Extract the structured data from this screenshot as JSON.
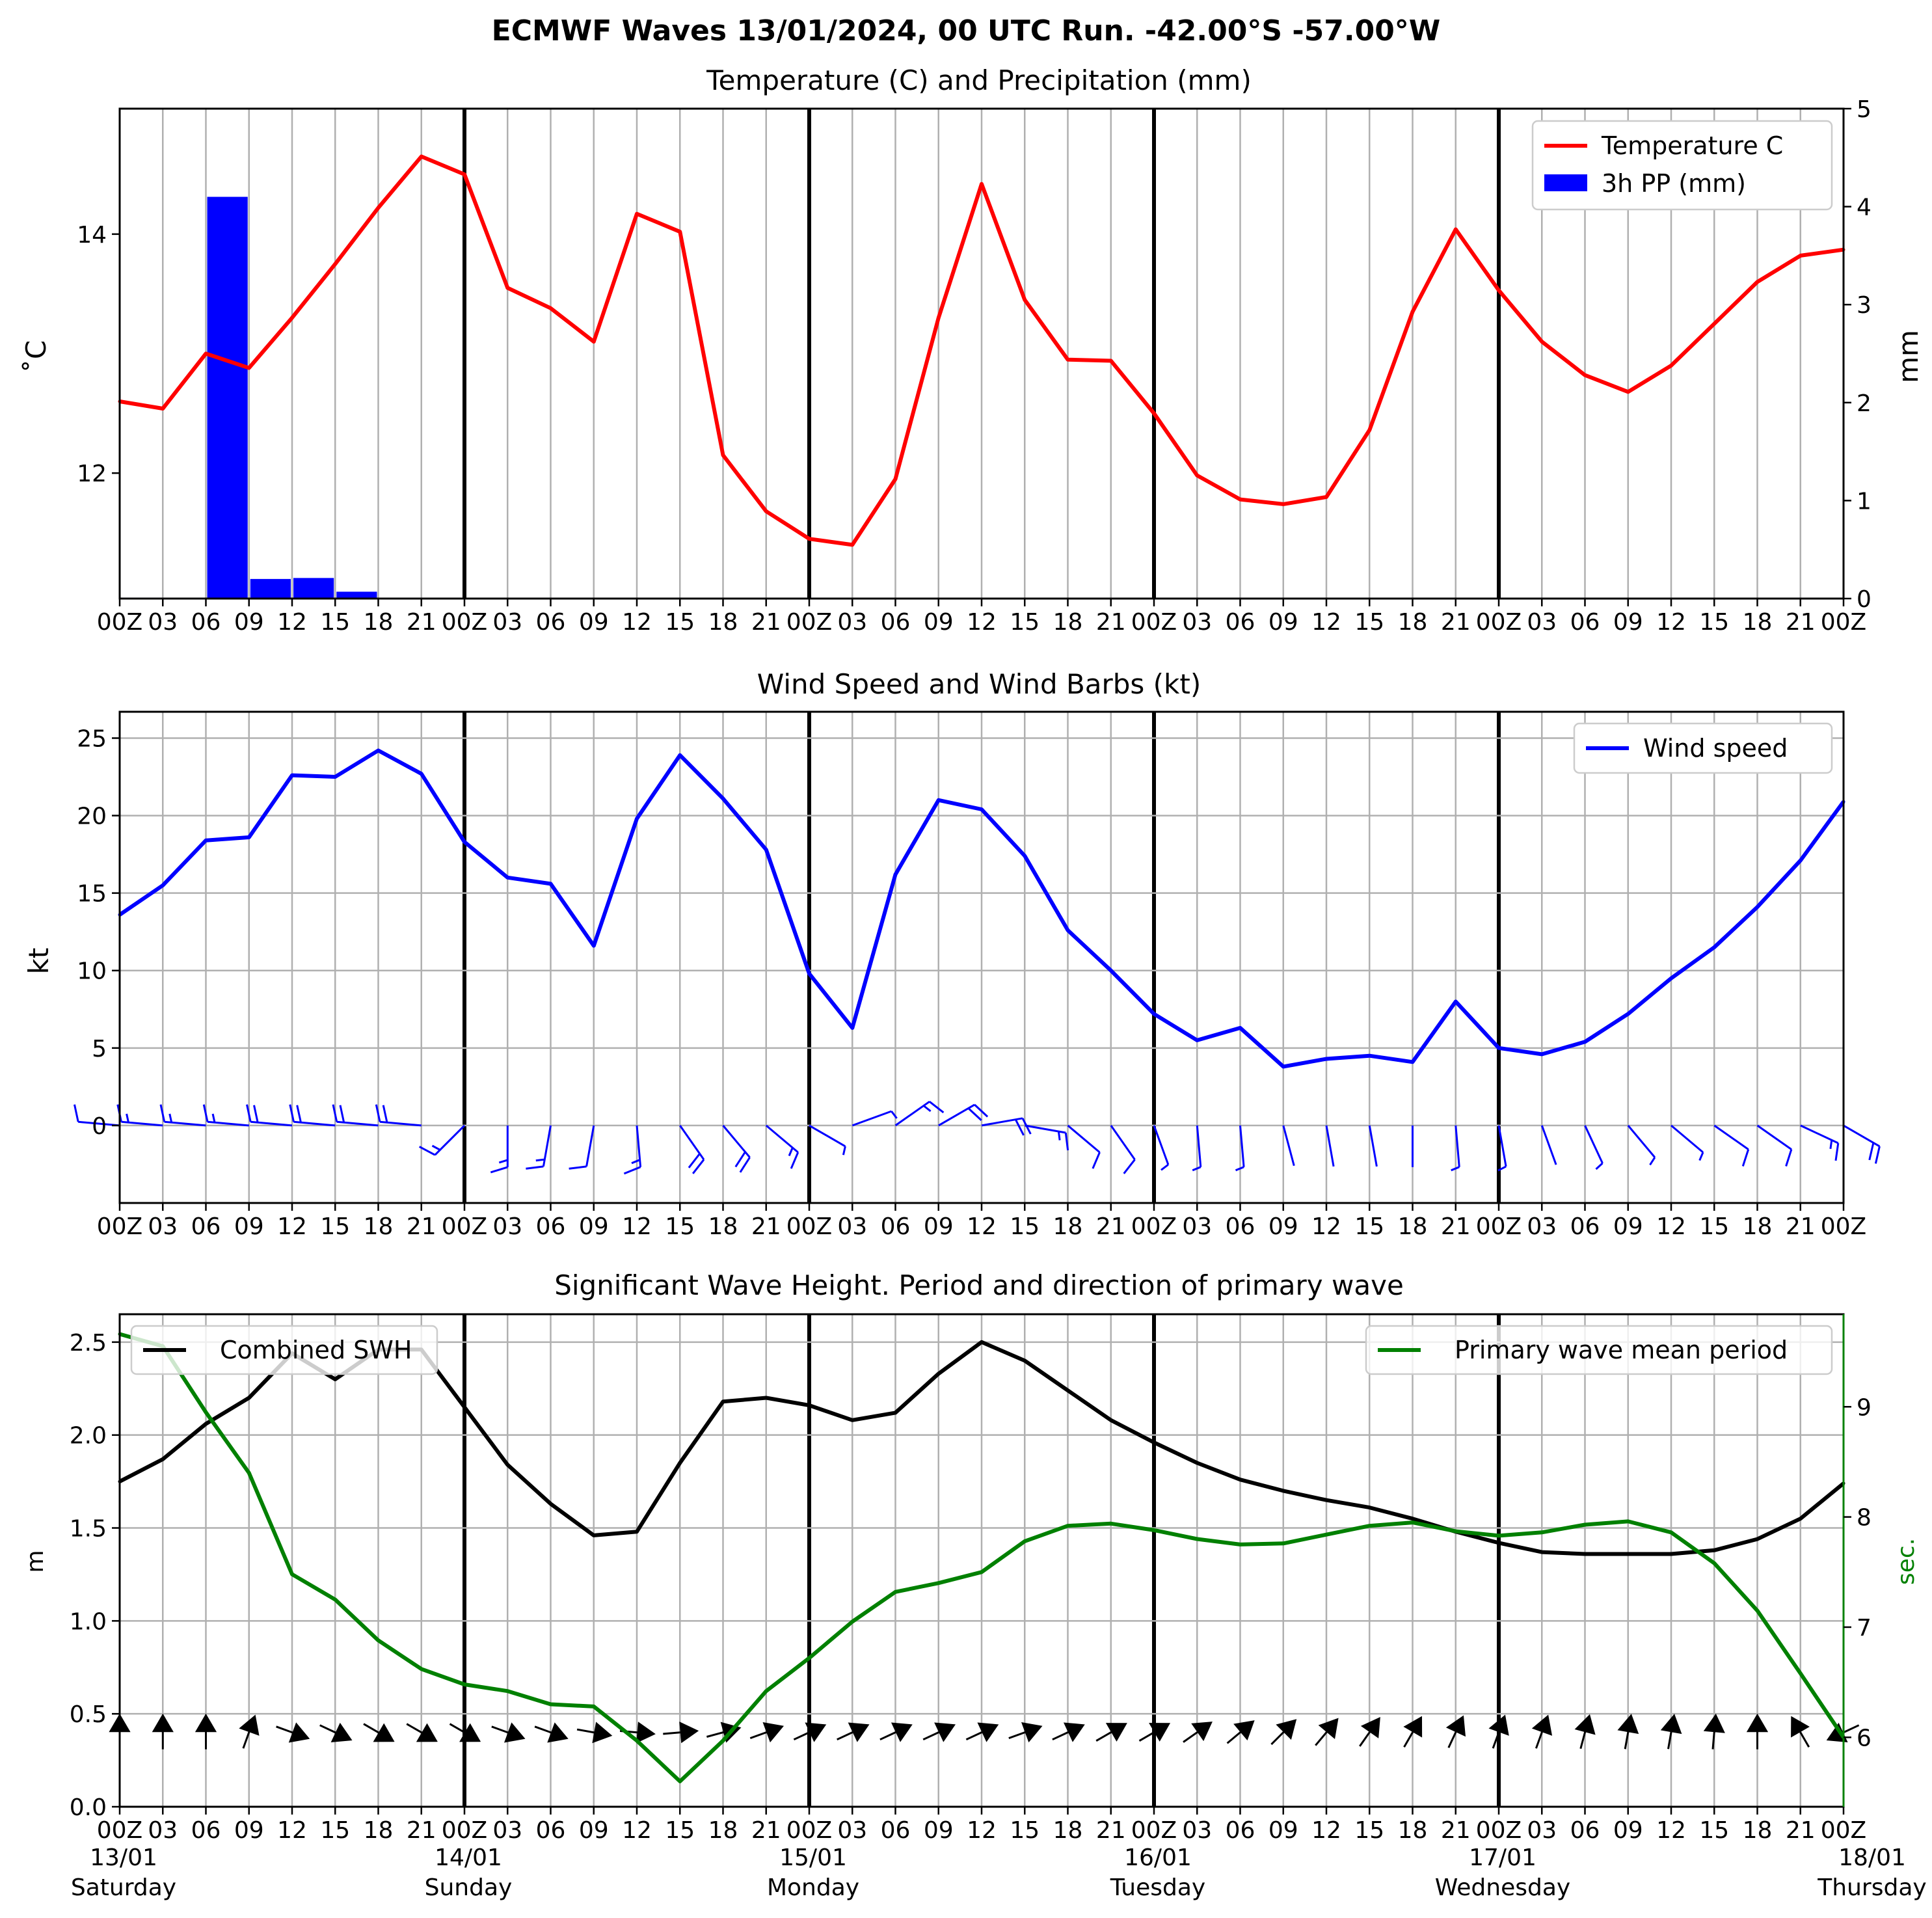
{
  "title": "ECMWF Waves 13/01/2024, 00 UTC Run. -42.00°S -57.00°W",
  "colors": {
    "temperature": "#ff0000",
    "precipitation": "#0000ff",
    "wind": "#0000ff",
    "swh": "#000000",
    "period": "#008000"
  },
  "x_tick_labels": [
    "00Z",
    "03",
    "06",
    "09",
    "12",
    "15",
    "18",
    "21",
    "00Z",
    "03",
    "06",
    "09",
    "12",
    "15",
    "18",
    "21",
    "00Z",
    "03",
    "06",
    "09",
    "12",
    "15",
    "18",
    "21",
    "00Z",
    "03",
    "06",
    "09",
    "12",
    "15",
    "18",
    "21",
    "00Z",
    "03",
    "06",
    "09",
    "12",
    "15",
    "18",
    "21",
    "00Z"
  ],
  "days": [
    {
      "date": "13/01",
      "weekday": "Saturday"
    },
    {
      "date": "14/01",
      "weekday": "Sunday"
    },
    {
      "date": "15/01",
      "weekday": "Monday"
    },
    {
      "date": "16/01",
      "weekday": "Tuesday"
    },
    {
      "date": "17/01",
      "weekday": "Wednesday"
    },
    {
      "date": "18/01",
      "weekday": "Thursday"
    }
  ],
  "chart_data": [
    {
      "type": "line",
      "title": "Temperature (C) and Precipitation (mm)",
      "ylabel": "$^\\circ$C",
      "ylabel_display": "˚C",
      "y2label": "mm",
      "ylim": [
        10.95,
        15.05
      ],
      "y2lim": [
        0,
        5
      ],
      "yticks": [
        12,
        14
      ],
      "y2ticks": [
        0,
        1,
        2,
        3,
        4,
        5
      ],
      "legend": "top-right",
      "legend_entries": [
        "Temperature C",
        "3h PP (mm)"
      ],
      "series": [
        {
          "name": "Temperature C",
          "type": "line",
          "values": [
            12.6,
            12.54,
            13.0,
            12.88,
            13.3,
            13.75,
            14.22,
            14.65,
            14.5,
            13.55,
            13.38,
            13.1,
            14.17,
            14.02,
            12.15,
            11.68,
            11.45,
            11.4,
            11.95,
            13.3,
            14.42,
            13.45,
            12.95,
            12.94,
            12.5,
            11.98,
            11.78,
            11.74,
            11.8,
            12.36,
            13.35,
            14.04,
            13.53,
            13.1,
            12.82,
            12.68,
            12.9,
            13.25,
            13.6,
            13.82,
            13.87
          ]
        },
        {
          "name": "3h PP (mm)",
          "type": "bar",
          "values": [
            0.01,
            0.0,
            4.1,
            0.2,
            0.21,
            0.07,
            0.0,
            0.0,
            0.0,
            0.0,
            0.0,
            0.0,
            0.0,
            0.0,
            0.0,
            0.0,
            0.0,
            0.0,
            0.0,
            0.0,
            0.0,
            0.0,
            0.0,
            0.0,
            0.0,
            0.0,
            0.0,
            0.0,
            0.0,
            0.0,
            0.0,
            0.0,
            0.0,
            0.0,
            0.0,
            0.0,
            0.0,
            0.0,
            0.0,
            0.0
          ]
        }
      ]
    },
    {
      "type": "line",
      "title": "Wind Speed and Wind Barbs (kt)",
      "ylabel": "kt",
      "ylim": [
        -5,
        26.7
      ],
      "yticks": [
        0,
        5,
        10,
        15,
        20,
        25
      ],
      "legend": "top-right",
      "legend_entries": [
        "Wind speed"
      ],
      "series": [
        {
          "name": "Wind speed",
          "values": [
            13.6,
            15.5,
            18.4,
            18.6,
            22.6,
            22.5,
            24.2,
            22.7,
            18.3,
            16.0,
            15.6,
            11.6,
            19.8,
            23.9,
            21.1,
            17.8,
            9.8,
            6.3,
            16.2,
            21.0,
            20.4,
            17.4,
            12.6,
            10.0,
            7.2,
            5.5,
            6.3,
            3.8,
            4.3,
            4.5,
            4.1,
            8.0,
            5.0,
            4.6,
            5.4,
            7.2,
            9.5,
            11.5,
            14.1,
            17.1,
            20.9
          ]
        }
      ],
      "wind_barbs": {
        "y": 0,
        "wind_to_direction_deg": [
          275,
          275,
          275,
          275,
          275,
          275,
          275,
          275,
          225,
          180,
          190,
          190,
          175,
          145,
          140,
          130,
          120,
          70,
          55,
          60,
          80,
          100,
          130,
          145,
          160,
          175,
          175,
          165,
          170,
          170,
          180,
          175,
          170,
          160,
          155,
          140,
          130,
          125,
          125,
          115,
          120
        ]
      }
    },
    {
      "type": "line",
      "title": "Significant Wave Height. Period and direction of primary wave",
      "ylabel": "m",
      "y2label": "sec.",
      "ylim": [
        0,
        2.65
      ],
      "y2lim": [
        5.37,
        9.84
      ],
      "yticks": [
        0.0,
        0.5,
        1.0,
        1.5,
        2.0,
        2.5
      ],
      "y2ticks": [
        6,
        7,
        8,
        9
      ],
      "legend": "top-left, top-right",
      "legend_entries": [
        "Combined SWH",
        "Primary wave mean period"
      ],
      "series": [
        {
          "name": "Combined SWH",
          "values": [
            1.75,
            1.87,
            2.06,
            2.2,
            2.44,
            2.3,
            2.46,
            2.46,
            2.15,
            1.84,
            1.63,
            1.46,
            1.48,
            1.85,
            2.18,
            2.2,
            2.16,
            2.08,
            2.12,
            2.33,
            2.5,
            2.4,
            2.24,
            2.08,
            1.96,
            1.85,
            1.76,
            1.7,
            1.65,
            1.61,
            1.55,
            1.48,
            1.42,
            1.37,
            1.36,
            1.36,
            1.36,
            1.38,
            1.44,
            1.55,
            1.74
          ]
        },
        {
          "name": "Primary wave mean period",
          "values": [
            9.66,
            9.55,
            8.95,
            8.4,
            7.48,
            7.25,
            6.88,
            6.62,
            6.48,
            6.42,
            6.3,
            6.28,
            5.97,
            5.6,
            5.97,
            6.42,
            6.72,
            7.05,
            7.32,
            7.4,
            7.5,
            7.78,
            7.92,
            7.94,
            7.88,
            7.8,
            7.75,
            7.76,
            7.84,
            7.92,
            7.95,
            7.87,
            7.83,
            7.86,
            7.93,
            7.96,
            7.86,
            7.58,
            7.15,
            6.58,
            6.0
          ]
        }
      ],
      "wave_direction_arrows": {
        "y": 0.4,
        "travel_to_direction_deg": [
          0,
          0,
          0,
          20,
          110,
          115,
          120,
          120,
          120,
          110,
          110,
          100,
          95,
          85,
          75,
          70,
          65,
          65,
          65,
          65,
          65,
          70,
          65,
          60,
          60,
          55,
          50,
          45,
          40,
          35,
          30,
          25,
          20,
          20,
          15,
          10,
          10,
          5,
          0,
          330,
          245
        ]
      }
    }
  ]
}
